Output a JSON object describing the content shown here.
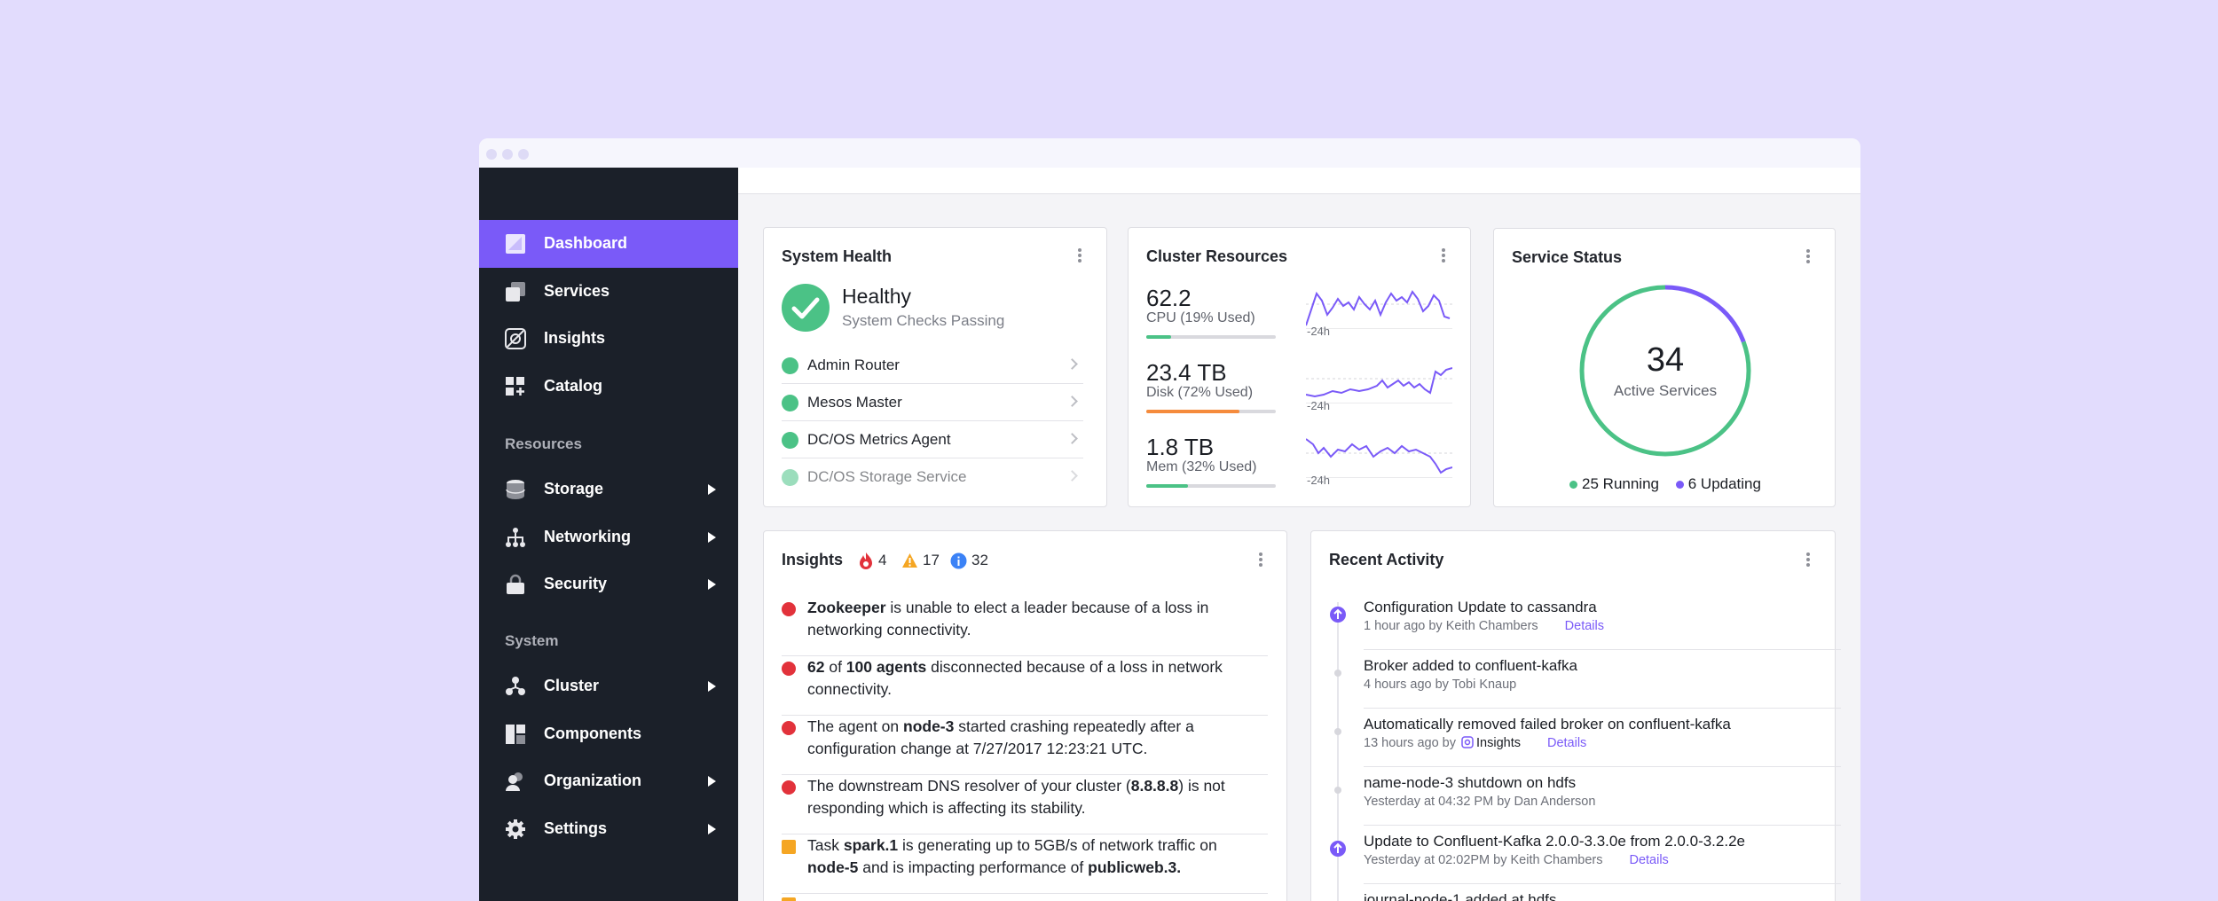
{
  "sidebar": {
    "items": [
      {
        "label": "Dashboard",
        "icon": "dashboard-icon"
      },
      {
        "label": "Services",
        "icon": "services-icon"
      },
      {
        "label": "Insights",
        "icon": "insights-icon"
      },
      {
        "label": "Catalog",
        "icon": "catalog-icon"
      }
    ],
    "resources_heading": "Resources",
    "resources": [
      {
        "label": "Storage",
        "icon": "storage-icon"
      },
      {
        "label": "Networking",
        "icon": "networking-icon"
      },
      {
        "label": "Security",
        "icon": "security-icon"
      }
    ],
    "system_heading": "System",
    "system": [
      {
        "label": "Cluster",
        "icon": "cluster-icon"
      },
      {
        "label": "Components",
        "icon": "components-icon"
      },
      {
        "label": "Organization",
        "icon": "organization-icon"
      },
      {
        "label": "Settings",
        "icon": "settings-icon"
      }
    ]
  },
  "system_health": {
    "title": "System Health",
    "status": "Healthy",
    "subtitle": "System Checks Passing",
    "checks": [
      "Admin Router",
      "Mesos Master",
      "DC/OS Metrics Agent",
      "DC/OS Storage Service"
    ]
  },
  "cluster_resources": {
    "title": "Cluster Resources",
    "metrics": [
      {
        "value": "62.2",
        "label": "CPU (19% Used)",
        "used": 0.19,
        "color": "#4bc286",
        "range": "-24h"
      },
      {
        "value": "23.4 TB",
        "label": "Disk (72% Used)",
        "used": 0.72,
        "color": "#f58b3c",
        "range": "-24h"
      },
      {
        "value": "1.8 TB",
        "label": "Mem (32% Used)",
        "used": 0.32,
        "color": "#4bc286",
        "range": "-24h"
      }
    ]
  },
  "service_status": {
    "title": "Service Status",
    "count": "34",
    "count_label": "Active Services",
    "running_label": "25 Running",
    "updating_label": "6 Updating",
    "running": 25,
    "updating": 6,
    "running_color": "#4bc286",
    "updating_color": "#7a5af8"
  },
  "insights": {
    "title": "Insights",
    "critical_count": "4",
    "warning_count": "17",
    "info_count": "32",
    "items": [
      {
        "severity": "critical",
        "line1_html": "<b>Zookeeper</b> is unable to elect a leader because of a loss in",
        "line2_html": "networking connectivity."
      },
      {
        "severity": "critical",
        "line1_html": "<b>62</b> of <b>100 agents</b> disconnected because of a loss in network",
        "line2_html": "connectivity."
      },
      {
        "severity": "critical",
        "line1_html": "The agent on <b>node-3</b> started crashing repeatedly after a",
        "line2_html": "configuration change at 7/27/2017 12:23:21 UTC."
      },
      {
        "severity": "critical",
        "line1_html": "The downstream DNS resolver of your cluster (<b>8.8.8.8</b>) is not",
        "line2_html": "responding which is affecting its stability."
      },
      {
        "severity": "warning",
        "line1_html": "Task <b>spark.1</b> is generating up to 5GB/s of network traffic on",
        "line2_html": "<b>node-5</b> and is impacting performance of <b>publicweb.3.</b>"
      }
    ]
  },
  "recent_activity": {
    "title": "Recent Activity",
    "items": [
      {
        "title": "Configuration Update to cassandra",
        "meta": "1 hour ago by Keith Chambers",
        "link": "Details"
      },
      {
        "title": "Broker added to confluent-kafka",
        "meta": "4 hours ago by Tobi Knaup",
        "link": ""
      },
      {
        "title": "Automatically removed failed broker on confluent-kafka",
        "meta": "13 hours ago by",
        "by_badge": "Insights",
        "link": "Details"
      },
      {
        "title": "name-node-3 shutdown on hdfs",
        "meta": "Yesterday at 04:32 PM by Dan Anderson",
        "link": ""
      },
      {
        "title": "Update to Confluent-Kafka 2.0.0-3.3.0e from 2.0.0-3.2.2e",
        "meta": "Yesterday at 02:02PM by Keith Chambers",
        "link": "Details"
      },
      {
        "title": "journal-node-1 added at hdfs",
        "meta": "",
        "link": ""
      }
    ]
  }
}
